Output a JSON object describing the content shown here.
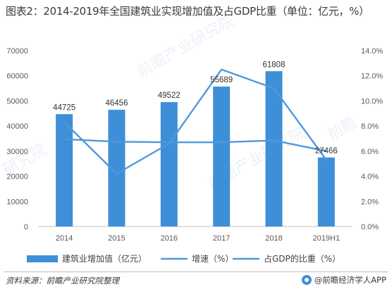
{
  "title": "图表2：2014-2019年全国建筑业实现增加值及占GDP比重（单位：亿元，%）",
  "source": "资料来源：前瞻产业研究院整理",
  "brand": "@前瞻经济学人APP",
  "colors": {
    "bar": "#3d8fd8",
    "line": "#4f98dc",
    "axis": "#595959"
  },
  "chart_data": {
    "type": "bar",
    "categories": [
      "2014",
      "2015",
      "2016",
      "2017",
      "2018",
      "2019H1"
    ],
    "series": [
      {
        "name": "建筑业增加值（亿元）",
        "kind": "bar",
        "axis": "left",
        "values": [
          44725,
          46456,
          49522,
          55689,
          61808,
          27466
        ]
      },
      {
        "name": "增速（%）",
        "kind": "line",
        "axis": "right",
        "values": [
          8.3,
          4.2,
          6.6,
          12.5,
          11.0,
          5.3
        ]
      },
      {
        "name": "占GDP的比重（%）",
        "kind": "line",
        "axis": "right",
        "values": [
          6.95,
          6.75,
          6.7,
          6.7,
          6.85,
          6.0
        ]
      }
    ],
    "yleft": {
      "ticks": [
        "0",
        "10000",
        "20000",
        "30000",
        "40000",
        "50000",
        "60000",
        "70000"
      ],
      "lim": [
        0,
        70000
      ]
    },
    "yright": {
      "ticks": [
        "0.0%",
        "2.0%",
        "4.0%",
        "6.0%",
        "8.0%",
        "10.0%",
        "12.0%",
        "14.0%"
      ],
      "lim": [
        0,
        14
      ]
    },
    "data_labels": [
      "44725",
      "46456",
      "49522",
      "55689",
      "61808",
      "27466"
    ],
    "legend_position": "bottom",
    "grid": false
  }
}
